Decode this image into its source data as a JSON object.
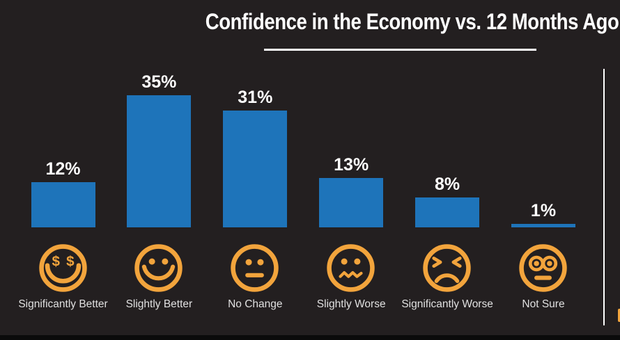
{
  "title": "Confidence in the Economy vs. 12 Months Ago",
  "colors": {
    "background": "#231F20",
    "bar_blue": "#1E74BA",
    "accent_orange": "#F2A43C",
    "title_text": "#FFFFFF",
    "category_label_text": "#E0E0E0",
    "divider_white": "#FFFFFF",
    "footer_strip_black": "#0B0B0B"
  },
  "chart_data": {
    "type": "bar",
    "title": "Confidence in the Economy vs. 12 Months Ago",
    "categories": [
      "Significantly Better",
      "Slightly Better",
      "No Change",
      "Slightly Worse",
      "Significantly Worse",
      "Not Sure"
    ],
    "values": [
      12,
      35,
      31,
      13,
      8,
      1
    ],
    "value_labels": [
      "12%",
      "35%",
      "31%",
      "13%",
      "8%",
      "1%"
    ],
    "icons": [
      "money-eyes-face-icon",
      "smile-face-icon",
      "neutral-face-icon",
      "confused-face-icon",
      "angry-face-icon",
      "dizzy-face-icon"
    ],
    "xlabel": "",
    "ylabel": "",
    "grid": false,
    "legend": false,
    "axes_visible": false,
    "value_label_position": "above-bar",
    "bar_color": "#1E74BA"
  }
}
